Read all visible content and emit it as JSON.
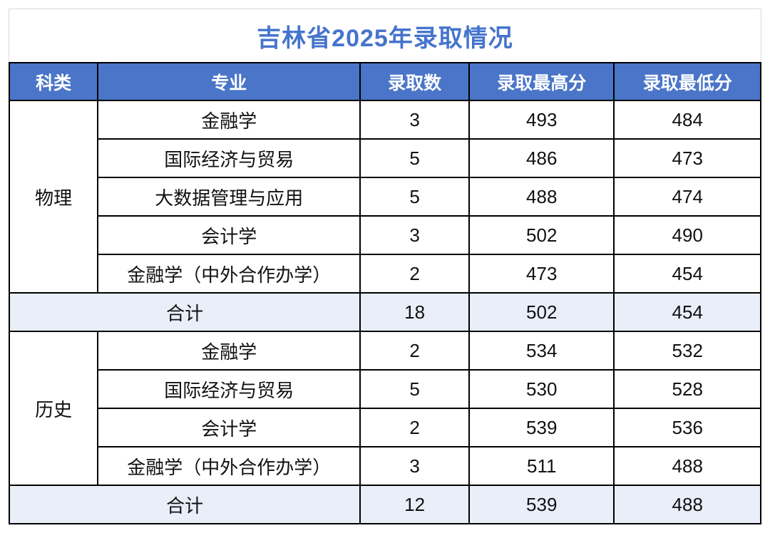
{
  "title": "吉林省2025年录取情况",
  "colors": {
    "header_bg": "#4a75c8",
    "title_text": "#4574cc",
    "total_row_bg": "#e9eef9",
    "table_border": "#000000",
    "title_box_border": "#d8d8d8"
  },
  "table": {
    "headers": [
      "科类",
      "专业",
      "录取数",
      "录取最高分",
      "录取最低分"
    ],
    "groups": [
      {
        "category": "物理",
        "rows": [
          {
            "major": "金融学",
            "count": "3",
            "max": "493",
            "min": "484"
          },
          {
            "major": "国际经济与贸易",
            "count": "5",
            "max": "486",
            "min": "473"
          },
          {
            "major": "大数据管理与应用",
            "count": "5",
            "max": "488",
            "min": "474"
          },
          {
            "major": "会计学",
            "count": "3",
            "max": "502",
            "min": "490"
          },
          {
            "major": "金融学（中外合作办学）",
            "count": "2",
            "max": "473",
            "min": "454"
          }
        ],
        "total": {
          "label": "合计",
          "count": "18",
          "max": "502",
          "min": "454"
        }
      },
      {
        "category": "历史",
        "rows": [
          {
            "major": "金融学",
            "count": "2",
            "max": "534",
            "min": "532"
          },
          {
            "major": "国际经济与贸易",
            "count": "5",
            "max": "530",
            "min": "528"
          },
          {
            "major": "会计学",
            "count": "2",
            "max": "539",
            "min": "536"
          },
          {
            "major": "金融学（中外合作办学）",
            "count": "3",
            "max": "511",
            "min": "488"
          }
        ],
        "total": {
          "label": "合计",
          "count": "12",
          "max": "539",
          "min": "488"
        }
      }
    ]
  }
}
